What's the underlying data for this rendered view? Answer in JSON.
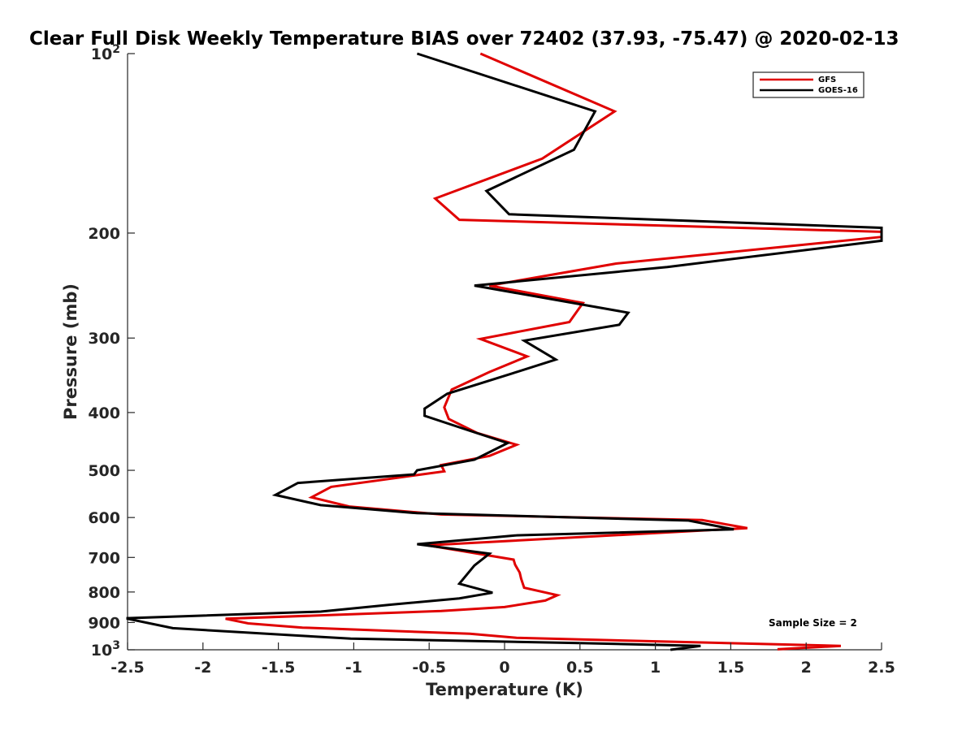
{
  "chart_data": {
    "type": "line",
    "title": "Clear Full Disk Weekly Temperature BIAS over 72402 (37.93, -75.47) @ 2020-02-13",
    "xlabel": "Temperature (K)",
    "ylabel": "Pressure (mb)",
    "xlim": [
      -2.5,
      2.5
    ],
    "ylim": [
      100,
      1000
    ],
    "y_scale": "log",
    "y_reversed": true,
    "grid": false,
    "legend_position": "top-right",
    "x_ticks": [
      "-2.5",
      "-2",
      "-1.5",
      "-1",
      "-0.5",
      "0",
      "0.5",
      "1",
      "1.5",
      "2",
      "2.5"
    ],
    "x_tick_values": [
      -2.5,
      -2,
      -1.5,
      -1,
      -0.5,
      0,
      0.5,
      1,
      1.5,
      2,
      2.5
    ],
    "y_ticks": [
      {
        "value": 100,
        "base": "10",
        "exp": "2",
        "label": ""
      },
      {
        "value": 200,
        "label": "200"
      },
      {
        "value": 300,
        "label": "300"
      },
      {
        "value": 400,
        "label": "400"
      },
      {
        "value": 500,
        "label": "500"
      },
      {
        "value": 600,
        "label": "600"
      },
      {
        "value": 700,
        "label": "700"
      },
      {
        "value": 800,
        "label": "800"
      },
      {
        "value": 900,
        "label": "900"
      },
      {
        "value": 1000,
        "base": "10",
        "exp": "3",
        "label": ""
      }
    ],
    "annotation": "Sample Size = 2",
    "series": [
      {
        "name": "GFS",
        "color": "#e00000",
        "points": [
          [
            -0.16,
            100
          ],
          [
            0.73,
            125
          ],
          [
            0.25,
            150
          ],
          [
            -0.46,
            175
          ],
          [
            -0.3,
            190
          ],
          [
            2.5,
            199
          ],
          [
            2.5,
            203
          ],
          [
            0.74,
            225
          ],
          [
            -0.1,
            245
          ],
          [
            0.52,
            262
          ],
          [
            0.43,
            282
          ],
          [
            -0.16,
            301
          ],
          [
            0.15,
            322
          ],
          [
            -0.1,
            342
          ],
          [
            -0.35,
            366
          ],
          [
            -0.4,
            392
          ],
          [
            -0.37,
            410
          ],
          [
            -0.18,
            433
          ],
          [
            0.08,
            453
          ],
          [
            -0.1,
            473
          ],
          [
            -0.42,
            490
          ],
          [
            -0.4,
            502
          ],
          [
            -0.55,
            508
          ],
          [
            -1.15,
            533
          ],
          [
            -1.28,
            555
          ],
          [
            -1.03,
            575
          ],
          [
            -0.42,
            593
          ],
          [
            1.31,
            606
          ],
          [
            1.61,
            625
          ],
          [
            -0.51,
            668
          ],
          [
            0.06,
            706
          ],
          [
            0.07,
            720
          ],
          [
            0.1,
            742
          ],
          [
            0.11,
            760
          ],
          [
            0.13,
            787
          ],
          [
            0.35,
            810
          ],
          [
            0.27,
            827
          ],
          [
            0.0,
            848
          ],
          [
            -0.42,
            861
          ],
          [
            -1.85,
            887
          ],
          [
            -1.7,
            903
          ],
          [
            -1.34,
            918
          ],
          [
            -0.23,
            940
          ],
          [
            0.08,
            955
          ],
          [
            1.5,
            975
          ],
          [
            2.23,
            985
          ],
          [
            1.81,
            998
          ]
        ]
      },
      {
        "name": "GOES-16",
        "color": "#000000",
        "points": [
          [
            -0.58,
            100
          ],
          [
            0.6,
            125
          ],
          [
            0.46,
            145
          ],
          [
            -0.12,
            170
          ],
          [
            0.03,
            186
          ],
          [
            2.5,
            196
          ],
          [
            2.5,
            206
          ],
          [
            1.08,
            228
          ],
          [
            -0.2,
            245
          ],
          [
            0.82,
            272
          ],
          [
            0.76,
            285
          ],
          [
            0.13,
            303
          ],
          [
            0.34,
            326
          ],
          [
            0.05,
            344
          ],
          [
            -0.38,
            372
          ],
          [
            -0.53,
            394
          ],
          [
            -0.53,
            405
          ],
          [
            -0.22,
            430
          ],
          [
            0.02,
            450
          ],
          [
            -0.2,
            480
          ],
          [
            -0.58,
            500
          ],
          [
            -0.6,
            508
          ],
          [
            -1.37,
            525
          ],
          [
            -1.52,
            550
          ],
          [
            -1.22,
            572
          ],
          [
            -0.58,
            590
          ],
          [
            1.22,
            607
          ],
          [
            1.52,
            628
          ],
          [
            0.07,
            643
          ],
          [
            -0.58,
            665
          ],
          [
            -0.1,
            690
          ],
          [
            -0.2,
            722
          ],
          [
            -0.3,
            775
          ],
          [
            -0.08,
            802
          ],
          [
            -0.3,
            820
          ],
          [
            -0.75,
            840
          ],
          [
            -1.22,
            863
          ],
          [
            -2.5,
            885
          ],
          [
            -2.5,
            887
          ],
          [
            -2.2,
            920
          ],
          [
            -1.36,
            947
          ],
          [
            -1.02,
            958
          ],
          [
            0.53,
            975
          ],
          [
            1.3,
            985
          ],
          [
            1.1,
            1000
          ]
        ]
      }
    ]
  }
}
